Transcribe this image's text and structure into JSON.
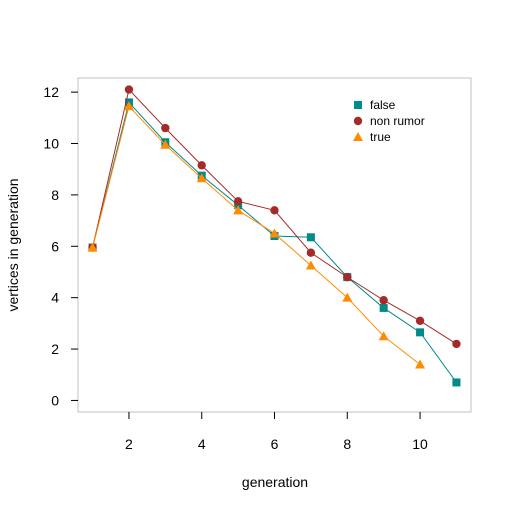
{
  "chart_data": {
    "type": "line",
    "title": "",
    "xlabel": "generation",
    "ylabel": "vertices in generation",
    "xlim": [
      0.6,
      11.4
    ],
    "ylim": [
      -0.45,
      12.55
    ],
    "xticks": [
      2,
      4,
      6,
      8,
      10
    ],
    "yticks": [
      0,
      2,
      4,
      6,
      8,
      10,
      12
    ],
    "grid": false,
    "legend_position": "top-right",
    "series": [
      {
        "name": "false",
        "color": "#008B8B",
        "marker": "square",
        "x": [
          1,
          2,
          3,
          4,
          5,
          6,
          7,
          8,
          9,
          10,
          11
        ],
        "y": [
          5.95,
          11.6,
          10.05,
          8.75,
          7.6,
          6.4,
          6.35,
          4.8,
          3.6,
          2.65,
          0.7
        ]
      },
      {
        "name": "non rumor",
        "color": "#A52A2A",
        "marker": "diamond",
        "x": [
          1,
          2,
          3,
          4,
          5,
          6,
          7,
          8,
          9,
          10,
          11
        ],
        "y": [
          5.95,
          12.1,
          10.6,
          9.15,
          7.75,
          7.4,
          5.75,
          4.8,
          3.9,
          3.1,
          2.2
        ]
      },
      {
        "name": "true",
        "color": "#FF8C00",
        "marker": "triangle",
        "x": [
          1,
          2,
          3,
          4,
          5,
          6,
          7,
          8,
          9,
          10
        ],
        "y": [
          5.95,
          11.45,
          9.95,
          8.65,
          7.4,
          6.5,
          5.25,
          4.0,
          2.5,
          1.4
        ]
      }
    ]
  }
}
